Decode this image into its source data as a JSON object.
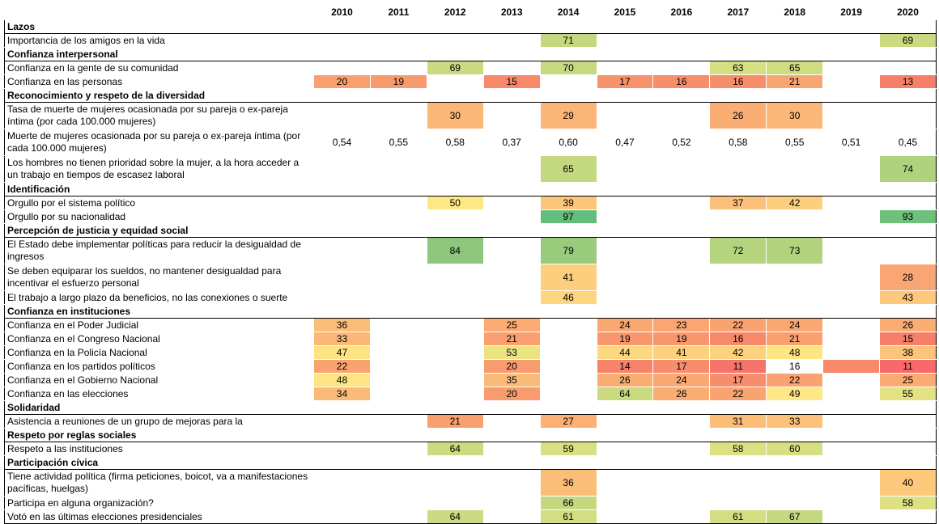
{
  "table": {
    "columns": [
      "2010",
      "2011",
      "2012",
      "2013",
      "2014",
      "2015",
      "2016",
      "2017",
      "2018",
      "2019",
      "2020"
    ],
    "sections": [
      {
        "title": "Lazos",
        "rows": [
          {
            "label": "Importancia de los amigos en la vida",
            "cells": [
              null,
              null,
              null,
              null,
              "71",
              null,
              null,
              null,
              null,
              null,
              "69"
            ],
            "colors": [
              null,
              null,
              null,
              null,
              "#c4d97f",
              null,
              null,
              null,
              null,
              null,
              "#c9da80"
            ]
          }
        ]
      },
      {
        "title": "Confianza interpersonal",
        "rows": [
          {
            "label": "Confianza en la gente de su comunidad",
            "cells": [
              null,
              null,
              "69",
              null,
              "70",
              null,
              null,
              "63",
              "65",
              null,
              null
            ],
            "colors": [
              null,
              null,
              "#c9da80",
              null,
              "#c6d980",
              null,
              null,
              "#d6df82",
              "#cfdc81",
              null,
              null
            ]
          },
          {
            "label": "Confianza en las personas",
            "cells": [
              "20",
              "19",
              null,
              "15",
              null,
              "17",
              "16",
              "16",
              "21",
              null,
              "13"
            ],
            "colors": [
              "#f8a070",
              "#f79a6e",
              null,
              "#f5896a",
              null,
              "#f6926c",
              "#f68e6b",
              "#f68e6b",
              "#f9a571",
              null,
              "#f5806a"
            ]
          }
        ]
      },
      {
        "title": "Reconocimiento y respeto de la diversidad",
        "rows": [
          {
            "label": "Tasa de muerte de mujeres ocasionada por su pareja o ex-pareja íntima (por cada 100.000 mujeres)",
            "cells": [
              null,
              null,
              "30",
              null,
              "29",
              null,
              null,
              "26",
              "30",
              null,
              null
            ],
            "colors": [
              null,
              null,
              "#fbb778",
              null,
              "#fbb577",
              null,
              null,
              "#faae74",
              "#fbb778",
              null,
              null
            ]
          },
          {
            "label": "Muerte de mujeres ocasionada por su pareja o ex-pareja íntima (por cada 100.000 mujeres)",
            "cells": [
              "0,54",
              "0,55",
              "0,58",
              "0,37",
              "0,60",
              "0,47",
              "0,52",
              "0,58",
              "0,55",
              "0,51",
              "0,45"
            ],
            "colors": [
              null,
              null,
              null,
              null,
              null,
              null,
              null,
              null,
              null,
              null,
              null
            ]
          },
          {
            "label": "Los hombres no tienen prioridad sobre la mujer, a la hora acceder a un trabajo en tiempos de escasez laboral",
            "cells": [
              null,
              null,
              null,
              null,
              "65",
              null,
              null,
              null,
              null,
              null,
              "74"
            ],
            "colors": [
              null,
              null,
              null,
              null,
              "#c4d97f",
              null,
              null,
              null,
              null,
              null,
              "#aed27d"
            ]
          }
        ]
      },
      {
        "title": "Identificación",
        "rows": [
          {
            "label": "Orgullo por el sistema político",
            "cells": [
              null,
              null,
              "50",
              null,
              "39",
              null,
              null,
              "37",
              "42",
              null,
              null
            ],
            "colors": [
              null,
              null,
              "#fde886",
              null,
              "#fbc57b",
              null,
              null,
              "#fbc07a",
              "#fccf7e",
              null,
              null
            ]
          },
          {
            "label": "Orgullo por su nacionalidad",
            "cells": [
              null,
              null,
              null,
              null,
              "97",
              null,
              null,
              null,
              null,
              null,
              "93"
            ],
            "colors": [
              null,
              null,
              null,
              null,
              "#63be7b",
              null,
              null,
              null,
              null,
              null,
              "#6ec07b"
            ]
          }
        ]
      },
      {
        "title": "Percepción de justicia y equidad social",
        "rows": [
          {
            "label": "El Estado debe implementar políticas para reducir la desigualdad de ingresos",
            "cells": [
              null,
              null,
              "84",
              null,
              "79",
              null,
              null,
              "72",
              "73",
              null,
              null
            ],
            "colors": [
              null,
              null,
              "#8cc77c",
              null,
              "#9acb7d",
              null,
              null,
              "#b5d47e",
              "#b2d37e",
              null,
              null
            ]
          },
          {
            "label": "Se deben equiparar los sueldos, no mantener desigualdad para incentivar el esfuerzo personal",
            "cells": [
              null,
              null,
              null,
              null,
              "41",
              null,
              null,
              null,
              null,
              null,
              "28"
            ],
            "colors": [
              null,
              null,
              null,
              null,
              "#fdce7e",
              null,
              null,
              null,
              null,
              null,
              "#faa674"
            ]
          },
          {
            "label": "El trabajo a largo plazo da beneficios, no las conexiones o suerte",
            "cells": [
              null,
              null,
              null,
              null,
              "46",
              null,
              null,
              null,
              null,
              null,
              "43"
            ],
            "colors": [
              null,
              null,
              null,
              null,
              "#fdd47f",
              null,
              null,
              null,
              null,
              null,
              "#fdc87c"
            ]
          }
        ]
      },
      {
        "title": "Confianza en instituciones",
        "rows": [
          {
            "label": "Confianza en el Poder Judicial",
            "cells": [
              "36",
              null,
              null,
              "25",
              null,
              "24",
              "23",
              "22",
              "24",
              null,
              "26"
            ],
            "colors": [
              "#fbbe79",
              null,
              null,
              "#fbab73",
              null,
              "#faa872",
              "#faa572",
              "#f9a371",
              "#faa872",
              null,
              "#faad73"
            ]
          },
          {
            "label": "Confianza en el Congreso Nacional",
            "cells": [
              "33",
              null,
              null,
              "21",
              null,
              "19",
              "19",
              "16",
              "21",
              null,
              "15"
            ],
            "colors": [
              "#fbb877",
              null,
              null,
              "#f99f70",
              null,
              "#f8966e",
              "#f8966e",
              "#f7896b",
              "#f99f70",
              null,
              "#f57f69"
            ]
          },
          {
            "label": "Confianza en la Policía Nacional",
            "cells": [
              "47",
              null,
              null,
              "53",
              null,
              "44",
              "41",
              "42",
              "48",
              null,
              "38"
            ],
            "colors": [
              "#fee283",
              null,
              null,
              "#ece483",
              null,
              "#fed881",
              "#fdd07f",
              "#fdd27f",
              "#fee583",
              null,
              "#fcc47b"
            ]
          },
          {
            "label": "Confianza en los partidos políticos",
            "cells": [
              "22",
              null,
              null,
              "20",
              null,
              "14",
              "17",
              "11",
              "16",
              null,
              "11"
            ],
            "colors": [
              "#f9a371",
              null,
              null,
              "#f89c70",
              null,
              "#f6836a",
              "#f78d6c",
              "#f57469",
              null,
              "#f7896b",
              "#f8696b"
            ]
          },
          {
            "label": "Confianza en el Gobierno Nacional",
            "cells": [
              "48",
              null,
              null,
              "35",
              null,
              "26",
              "24",
              "17",
              "22",
              null,
              "25"
            ],
            "colors": [
              "#fee483",
              null,
              null,
              "#fbbb78",
              null,
              "#faad73",
              "#faa872",
              "#f78d6c",
              "#f9a371",
              null,
              "#faab73"
            ]
          },
          {
            "label": "Confianza en las elecciones",
            "cells": [
              "34",
              null,
              null,
              "20",
              null,
              "64",
              "26",
              "22",
              "49",
              null,
              "55"
            ],
            "colors": [
              "#fbba78",
              null,
              null,
              "#f89c70",
              null,
              "#c9da81",
              "#faad73",
              "#f9a371",
              "#fee784",
              null,
              "#e2e283"
            ]
          }
        ]
      },
      {
        "title": "Solidaridad",
        "rows": [
          {
            "label": "Asistencia a reuniones de un grupo de mejoras para la",
            "cells": [
              null,
              null,
              "21",
              null,
              "27",
              null,
              null,
              "31",
              "33",
              null,
              null
            ],
            "colors": [
              null,
              null,
              "#f9a070",
              null,
              "#fbb074",
              null,
              null,
              "#fcbd78",
              "#fcc27a",
              null,
              null
            ]
          }
        ]
      },
      {
        "title": "Respeto por reglas sociales",
        "rows": [
          {
            "label": "Respeto a las instituciones",
            "cells": [
              null,
              null,
              "64",
              null,
              "59",
              null,
              null,
              "58",
              "60",
              null,
              null
            ],
            "colors": [
              null,
              null,
              "#cbdb81",
              null,
              "#d9e082",
              null,
              null,
              "#dce082",
              "#d6df82",
              null,
              null
            ]
          }
        ]
      },
      {
        "title": "Participación cívica",
        "rows": [
          {
            "label": "Tiene actividad política (firma peticiones, boicot, va a manifestaciones pacíficas, huelgas)",
            "cells": [
              null,
              null,
              null,
              null,
              "36",
              null,
              null,
              null,
              null,
              null,
              "40"
            ],
            "colors": [
              null,
              null,
              null,
              null,
              "#fbbe79",
              null,
              null,
              null,
              null,
              null,
              "#fcc97c"
            ]
          },
          {
            "label": "Participa en alguna organización?",
            "cells": [
              null,
              null,
              null,
              null,
              "66",
              null,
              null,
              null,
              null,
              null,
              "58"
            ],
            "colors": [
              null,
              null,
              null,
              null,
              "#c4d97f",
              null,
              null,
              null,
              null,
              null,
              "#dde182"
            ]
          },
          {
            "label": "Votó en las últimas elecciones presidenciales",
            "cells": [
              null,
              null,
              "64",
              null,
              "61",
              null,
              null,
              "61",
              "67",
              null,
              null
            ],
            "colors": [
              null,
              null,
              "#cbdb81",
              null,
              "#d3de82",
              null,
              null,
              "#d3de82",
              "#c4d97f",
              null,
              null
            ]
          }
        ]
      }
    ]
  }
}
